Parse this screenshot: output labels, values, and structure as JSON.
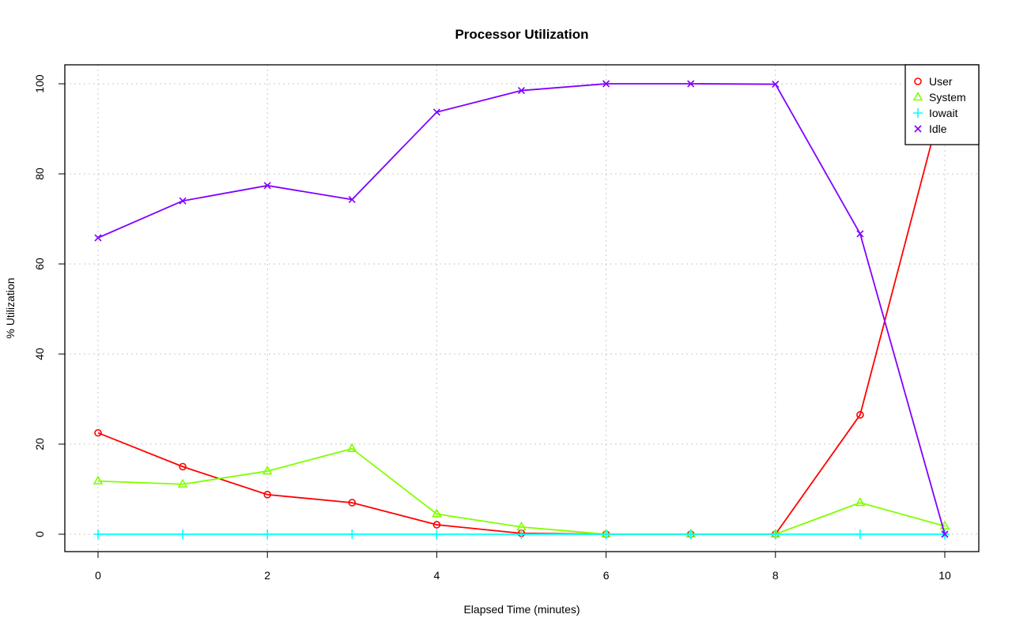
{
  "chart_data": {
    "type": "line",
    "title": "Processor Utilization",
    "xlabel": "Elapsed Time (minutes)",
    "ylabel": "% Utilization",
    "xlim": [
      0,
      10
    ],
    "ylim": [
      0,
      100
    ],
    "x_ticks": [
      0,
      2,
      4,
      6,
      8,
      10
    ],
    "y_ticks": [
      0,
      20,
      40,
      60,
      80,
      100
    ],
    "grid": true,
    "legend_position": "top-right",
    "x": [
      0,
      1,
      2,
      3,
      4,
      5,
      6,
      7,
      8,
      9,
      10
    ],
    "series": [
      {
        "name": "User",
        "color": "#ff0000",
        "marker": "circle",
        "values": [
          22.5,
          15.0,
          8.8,
          7.0,
          2.1,
          0.2,
          0,
          0,
          0,
          26.5,
          98.2
        ]
      },
      {
        "name": "System",
        "color": "#80ff00",
        "marker": "triangle",
        "values": [
          11.8,
          11.1,
          14.0,
          19.0,
          4.5,
          1.6,
          0,
          0,
          0,
          7.0,
          1.8
        ]
      },
      {
        "name": "Iowait",
        "color": "#00ffff",
        "marker": "plus",
        "values": [
          0,
          0,
          0,
          0,
          0,
          0,
          0,
          0,
          0,
          0,
          0
        ]
      },
      {
        "name": "Idle",
        "color": "#8000ff",
        "marker": "cross",
        "values": [
          65.8,
          74.0,
          77.4,
          74.3,
          93.7,
          98.5,
          100,
          100,
          99.9,
          66.7,
          0
        ]
      }
    ]
  }
}
